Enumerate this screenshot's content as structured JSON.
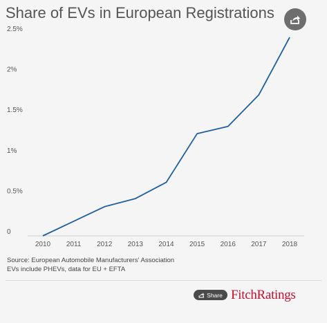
{
  "header": {
    "title": "Share of EVs in European Registrations",
    "share_icon": "share-arrow-icon"
  },
  "chart_data": {
    "type": "line",
    "title": "Share of EVs in European Registrations",
    "xlabel": "",
    "ylabel": "",
    "x": [
      "2010",
      "2011",
      "2012",
      "2013",
      "2014",
      "2015",
      "2016",
      "2017",
      "2018"
    ],
    "series": [
      {
        "values": [
          0.0,
          0.18,
          0.36,
          0.46,
          0.66,
          1.26,
          1.35,
          1.74,
          2.45
        ]
      }
    ],
    "yticks": [
      0,
      0.5,
      1,
      1.5,
      2,
      2.5
    ],
    "ytick_labels": [
      "0",
      "0.5%",
      "1%",
      "1.5%",
      "2%",
      "2.5%"
    ],
    "ylim": [
      0,
      2.5
    ],
    "grid": false,
    "legend": "none",
    "line_color": "#1f5f9e"
  },
  "footer": {
    "source_line1": "Source: European Automobile Manufacturers' Association",
    "source_line2": "EVs include PHEVs, data for EU + EFTA",
    "share_label": "Share",
    "logo_text": "FitchRatings"
  }
}
